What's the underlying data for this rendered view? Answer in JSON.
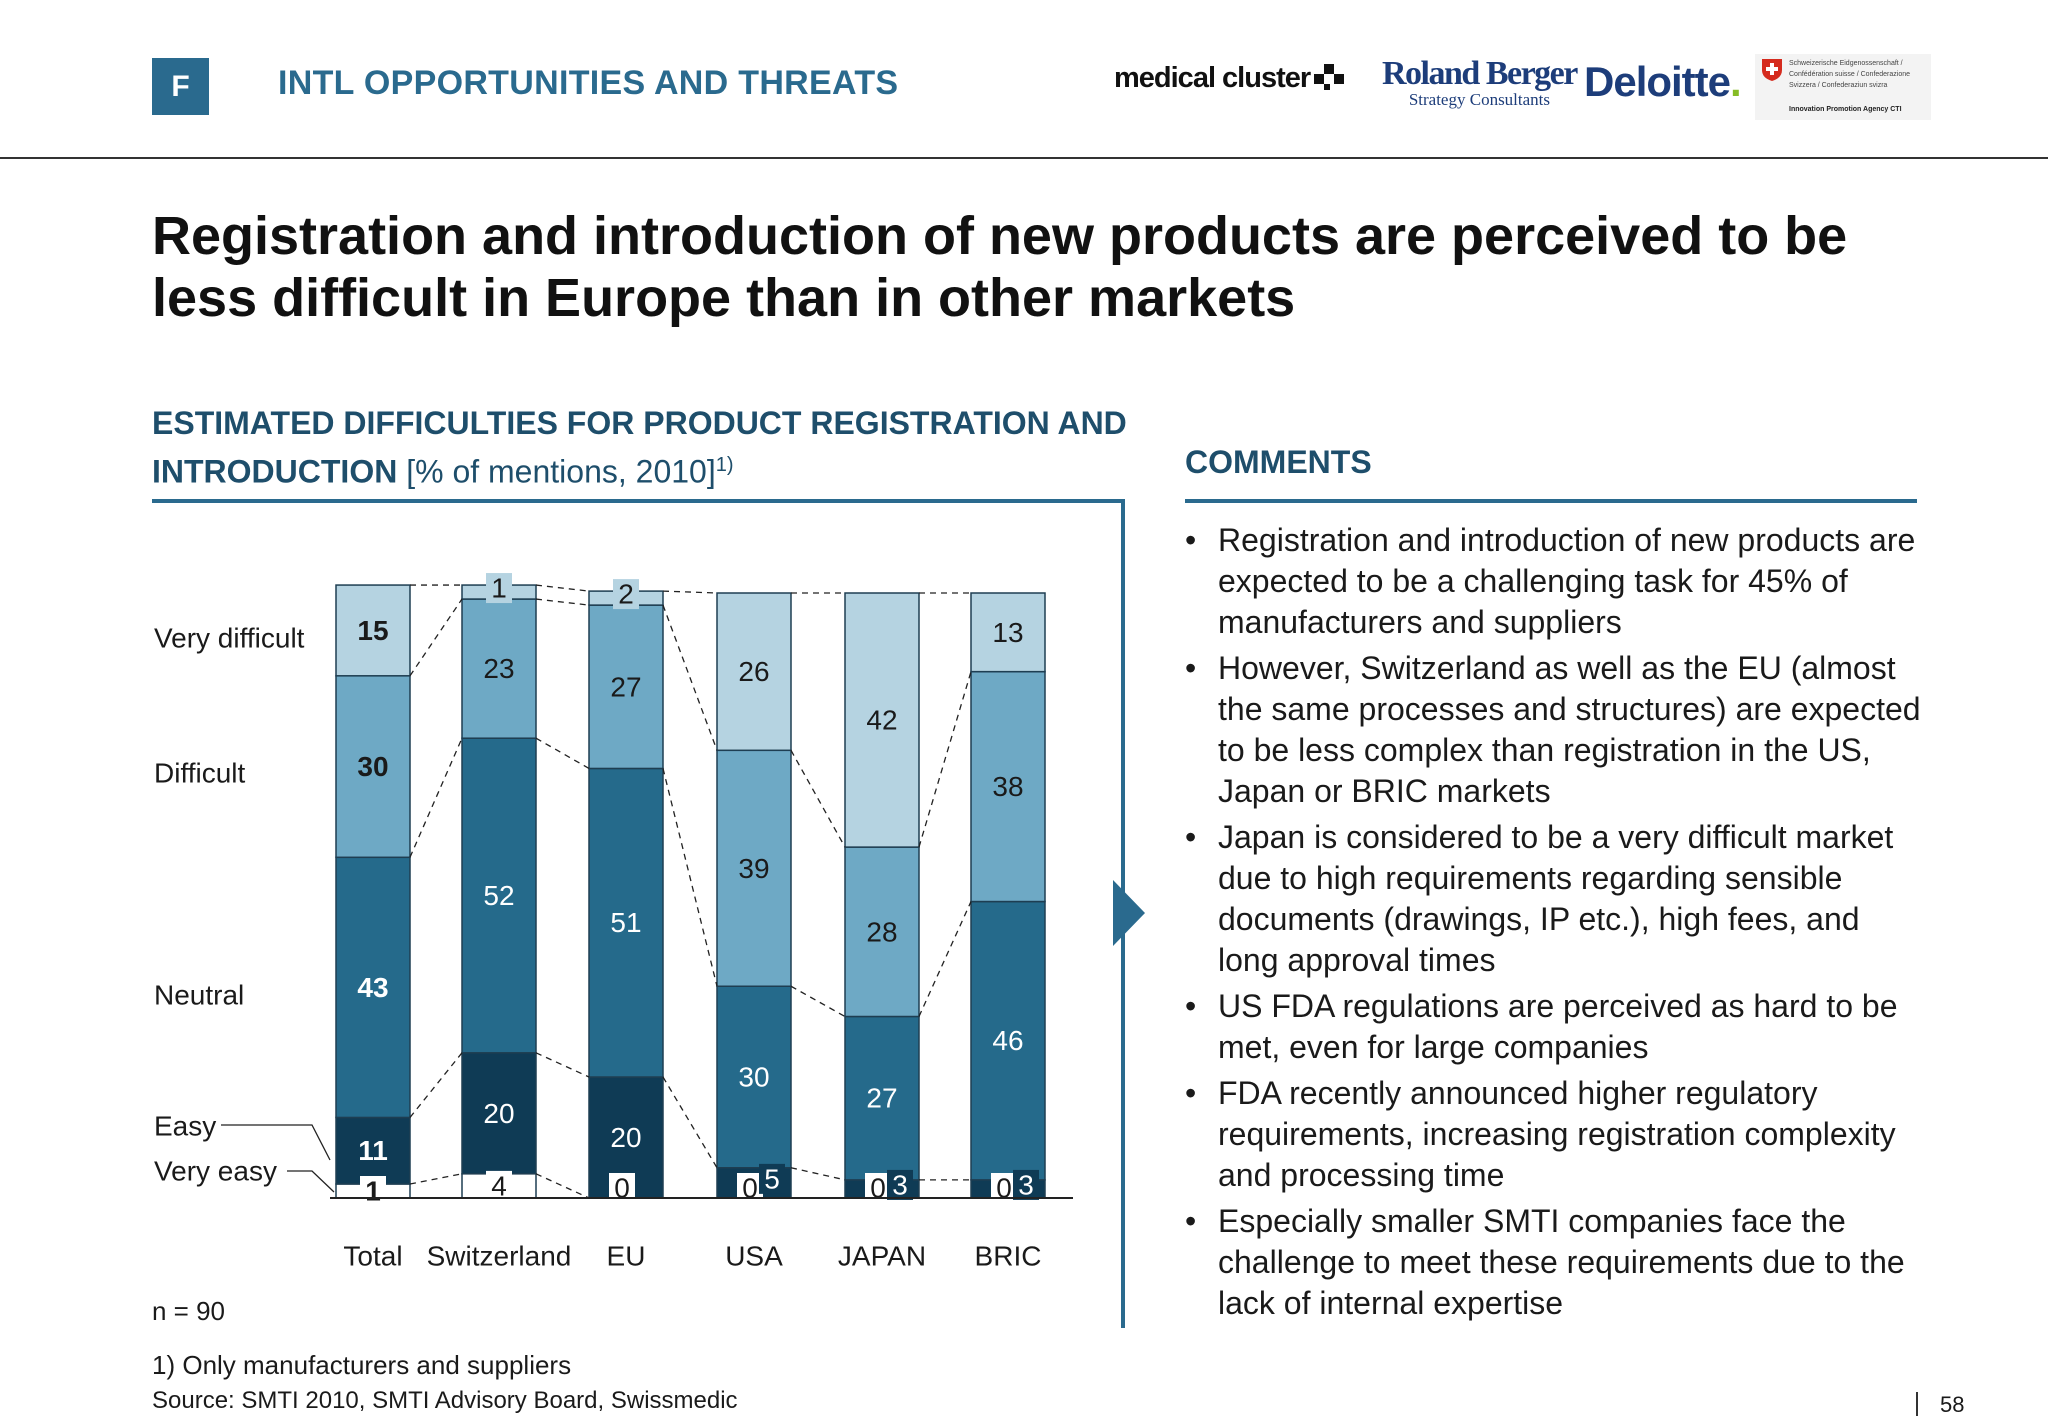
{
  "header": {
    "section_letter": "F",
    "section_title": "INTL OPPORTUNITIES AND THREATS",
    "logos": {
      "medical_cluster": "medical cluster",
      "roland_berger_name": "Roland Berger",
      "roland_berger_sub": "Strategy Consultants",
      "deloitte": "Deloitte",
      "deloitte_dot": ".",
      "cti_lines": "Schweizerische Eidgenossenschaft / Confédération suisse / Confederazione Svizzera / Confederaziun svizra",
      "cti_agency": "Innovation Promotion Agency CTI"
    }
  },
  "headline": "Registration and introduction of new products are perceived to be less difficult in Europe than in other markets",
  "chart_panel": {
    "title_bold": "ESTIMATED DIFFICULTIES FOR PRODUCT REGISTRATION AND INTRODUCTION",
    "title_unit": "[% of mentions, 2010]",
    "title_footnote_mark": "1)"
  },
  "chart_data": {
    "type": "bar",
    "stacked": true,
    "percent_stacked": true,
    "categories": [
      "Total",
      "Switzerland",
      "EU",
      "USA",
      "JAPAN",
      "BRIC"
    ],
    "series": [
      {
        "name": "Very easy",
        "values": [
          1,
          4,
          0,
          0,
          0,
          0
        ],
        "color": "#ffffff",
        "label_color": "#1a1a1a"
      },
      {
        "name": "Easy",
        "values": [
          11,
          20,
          20,
          5,
          3,
          3
        ],
        "color": "#0f3b55",
        "label_color": "#ffffff"
      },
      {
        "name": "Neutral",
        "values": [
          43,
          52,
          51,
          30,
          27,
          46
        ],
        "color": "#256a8b",
        "label_color": "#ffffff"
      },
      {
        "name": "Difficult",
        "values": [
          30,
          23,
          27,
          39,
          28,
          38
        ],
        "color": "#6ea9c5",
        "label_color": "#1a1a1a"
      },
      {
        "name": "Very difficult",
        "values": [
          15,
          1,
          2,
          26,
          42,
          13
        ],
        "color": "#b5d3e1",
        "label_color": "#1a1a1a"
      }
    ],
    "legend": "left-side labels",
    "bold_labels_category": "Total",
    "grid": false
  },
  "n_note": "n = 90",
  "comments": {
    "title": "COMMENTS",
    "bullet_glyph": "•",
    "items": [
      "Registration and introduction of new products are expected to be a challenging task for 45% of manufacturers and suppliers",
      "However, Switzerland as well as the EU (almost the same processes and structures) are expected to be less complex than registration in the US, Japan or BRIC markets",
      "Japan is considered to be a very difficult market due to high requirements regarding sensible documents (drawings, IP etc.), high fees, and long approval times",
      "US FDA regulations are perceived as hard to be met, even for large companies",
      "FDA recently announced higher regulatory requirements, increasing registration complexity and processing time",
      "Especially smaller SMTI companies face the challenge to meet these requirements due to the lack of internal expertise"
    ]
  },
  "footnote": "1) Only manufacturers and suppliers",
  "source": "Source:  SMTI 2010, SMTI Advisory Board, Swissmedic",
  "page_number": "58",
  "colors": {
    "accent": "#2a6a8e",
    "title_dark": "#1e4e6b",
    "arrow": "#2a6a8e"
  }
}
